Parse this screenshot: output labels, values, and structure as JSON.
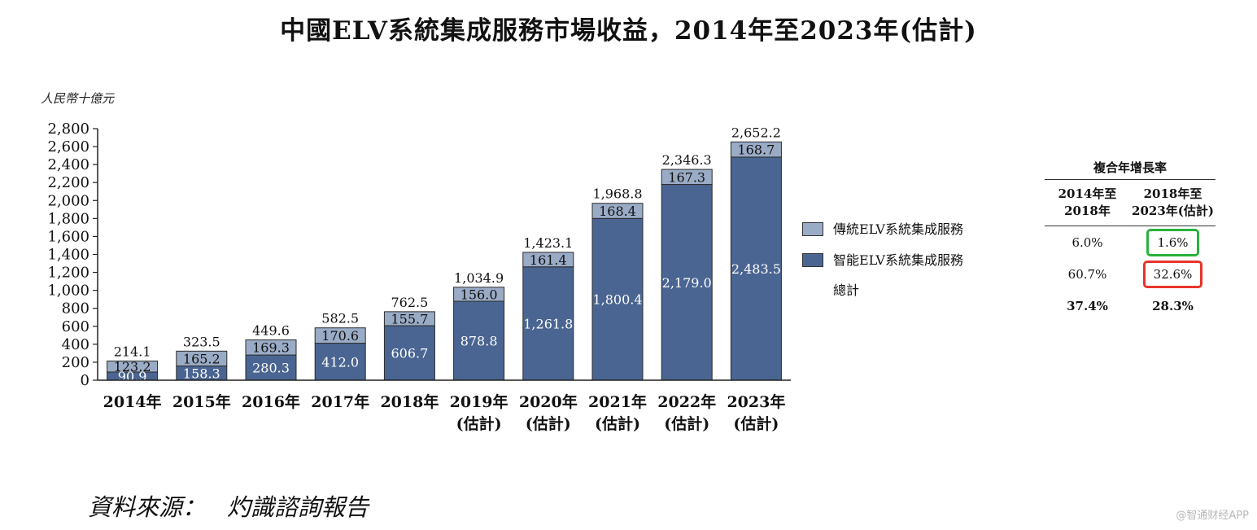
{
  "title": "中國ELV系統集成服務市場收益，2014年至2023年(估計)",
  "unit_label": "人民幣十億元",
  "source_label": "資料來源：",
  "source_name": "灼識諮詢報告",
  "watermark": "@智通财经APP",
  "chart_data": {
    "type": "bar",
    "stacked": true,
    "categories": [
      "2014年",
      "2015年",
      "2016年",
      "2017年",
      "2018年",
      "2019年\n(估計)",
      "2020年\n(估計)",
      "2021年\n(估計)",
      "2022年\n(估計)",
      "2023年\n(估計)"
    ],
    "series": [
      {
        "name": "智能ELV系統集成服務",
        "values": [
          90.9,
          158.3,
          280.3,
          412.0,
          606.7,
          878.8,
          1261.8,
          1800.4,
          2179.0,
          2483.5
        ],
        "labels": [
          "90.9",
          "158.3",
          "280.3",
          "412.0",
          "606.7",
          "878.8",
          "1,261.8",
          "1,800.4",
          "2,179.0",
          "2,483.5"
        ],
        "color": "#4a6591"
      },
      {
        "name": "傳統ELV系統集成服務",
        "values": [
          123.2,
          165.2,
          169.3,
          170.6,
          155.7,
          156.0,
          161.4,
          168.4,
          167.3,
          168.7
        ],
        "labels": [
          "123.2",
          "165.2",
          "169.3",
          "170.6",
          "155.7",
          "156.0",
          "161.4",
          "168.4",
          "167.3",
          "168.7"
        ],
        "color": "#9aabc6"
      }
    ],
    "totals_name": "總計",
    "totals": [
      214.1,
      323.5,
      449.6,
      582.5,
      762.5,
      1034.9,
      1423.1,
      1968.8,
      2346.3,
      2652.2
    ],
    "total_labels": [
      "214.1",
      "323.5",
      "449.6",
      "582.5",
      "762.5",
      "1,034.9",
      "1,423.1",
      "1,968.8",
      "2,346.3",
      "2,652.2"
    ],
    "ylim": [
      0,
      2800
    ],
    "y_ticks": [
      0,
      200,
      400,
      600,
      800,
      1000,
      1200,
      1400,
      1600,
      1800,
      2000,
      2200,
      2400,
      2600,
      2800
    ],
    "y_tick_labels": [
      "0",
      "200",
      "400",
      "600",
      "800",
      "1,000",
      "1,200",
      "1,400",
      "1,600",
      "1,800",
      "2,000",
      "2,200",
      "2,400",
      "2,600",
      "2,800"
    ],
    "grid": false,
    "legend_position": "right"
  },
  "cagr": {
    "title": "複合年增長率",
    "headers": [
      "2014年至\n2018年",
      "2018年至\n2023年(估計)"
    ],
    "rows": [
      {
        "values": [
          "6.0%",
          "1.6%"
        ]
      },
      {
        "values": [
          "60.7%",
          "32.6%"
        ]
      },
      {
        "values": [
          "37.4%",
          "28.3%"
        ]
      }
    ]
  }
}
